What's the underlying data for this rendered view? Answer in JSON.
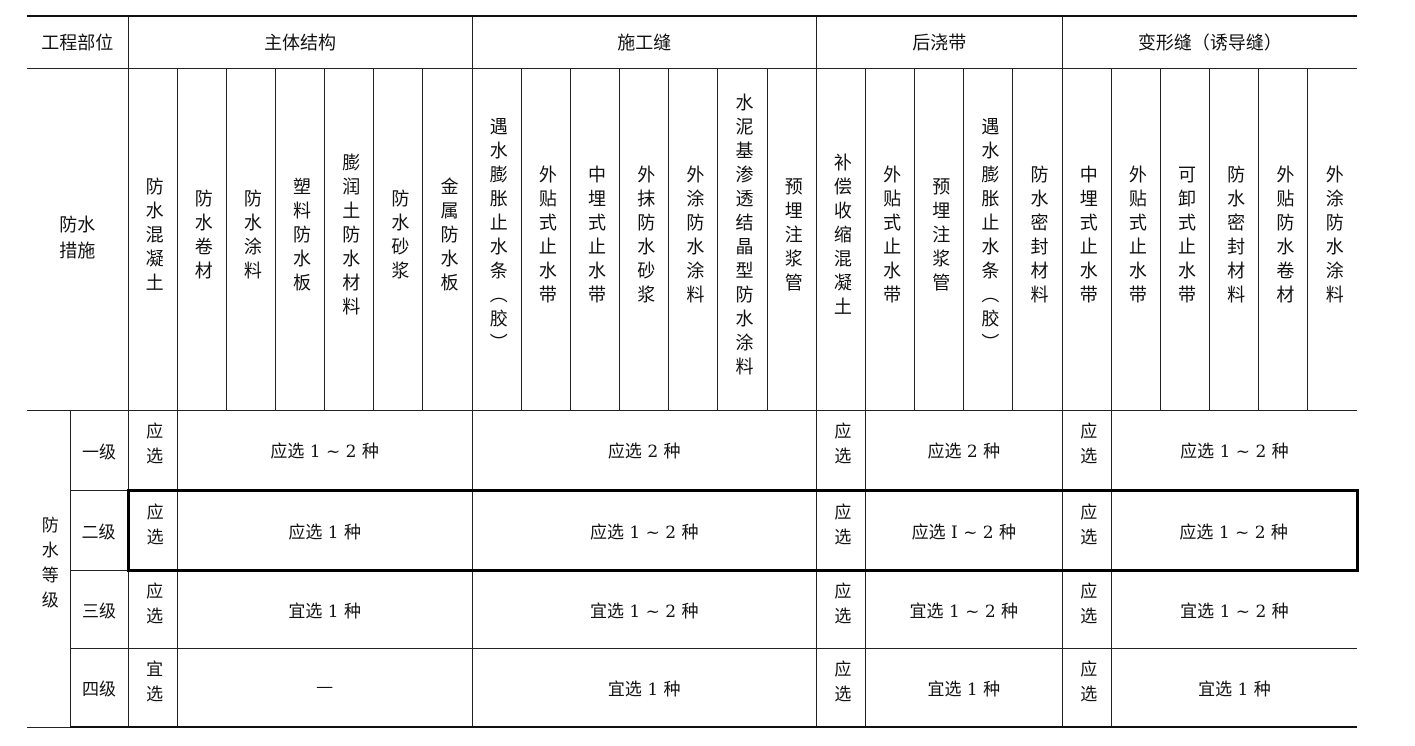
{
  "header": {
    "part_label": "工程部位",
    "measure_label": "防水措施",
    "grade_label": "防水等级",
    "groups": [
      "主体结构",
      "施工缝",
      "后浇带",
      "变形缝（诱导缝）"
    ]
  },
  "measures": [
    "防水混凝土",
    "防水卷材",
    "防水涂料",
    "塑料防水板",
    "膨润土防水材料",
    "防水砂浆",
    "金属防水板",
    "遇水膨胀止水条（胶）",
    "外贴式止水带",
    "中埋式止水带",
    "外抹防水砂浆",
    "外涂防水涂料",
    "水泥基渗透结晶型防水涂料",
    "预埋注浆管",
    "补偿收缩混凝土",
    "外贴式止水带",
    "预埋注浆管",
    "遇水膨胀止水条（胶）",
    "防水密封材料",
    "中埋式止水带",
    "外贴式止水带",
    "可卸式止水带",
    "防水密封材料",
    "外贴防水卷材",
    "外涂防水涂料"
  ],
  "rows": [
    {
      "grade": "一级",
      "cells": [
        "应选",
        "应选 1 ~ 2 种",
        "应选 2 种",
        "应选",
        "应选 2 种",
        "应选",
        "应选 1 ~ 2 种"
      ]
    },
    {
      "grade": "二级",
      "cells": [
        "应选",
        "应选 1 种",
        "应选 1 ~ 2 种",
        "应选",
        "应选 I ~ 2 种",
        "应选",
        "应选 1 ~ 2 种"
      ]
    },
    {
      "grade": "三级",
      "cells": [
        "应选",
        "宜选 1 种",
        "宜选 1 ~ 2 种",
        "应选",
        "宜选 1 ~ 2 种",
        "应选",
        "宜选 1 ~ 2 种"
      ]
    },
    {
      "grade": "四级",
      "cells": [
        "宜选",
        "—",
        "宜选 1 种",
        "应选",
        "宜选 1 种",
        "应选",
        "宜选 1 种"
      ]
    }
  ]
}
